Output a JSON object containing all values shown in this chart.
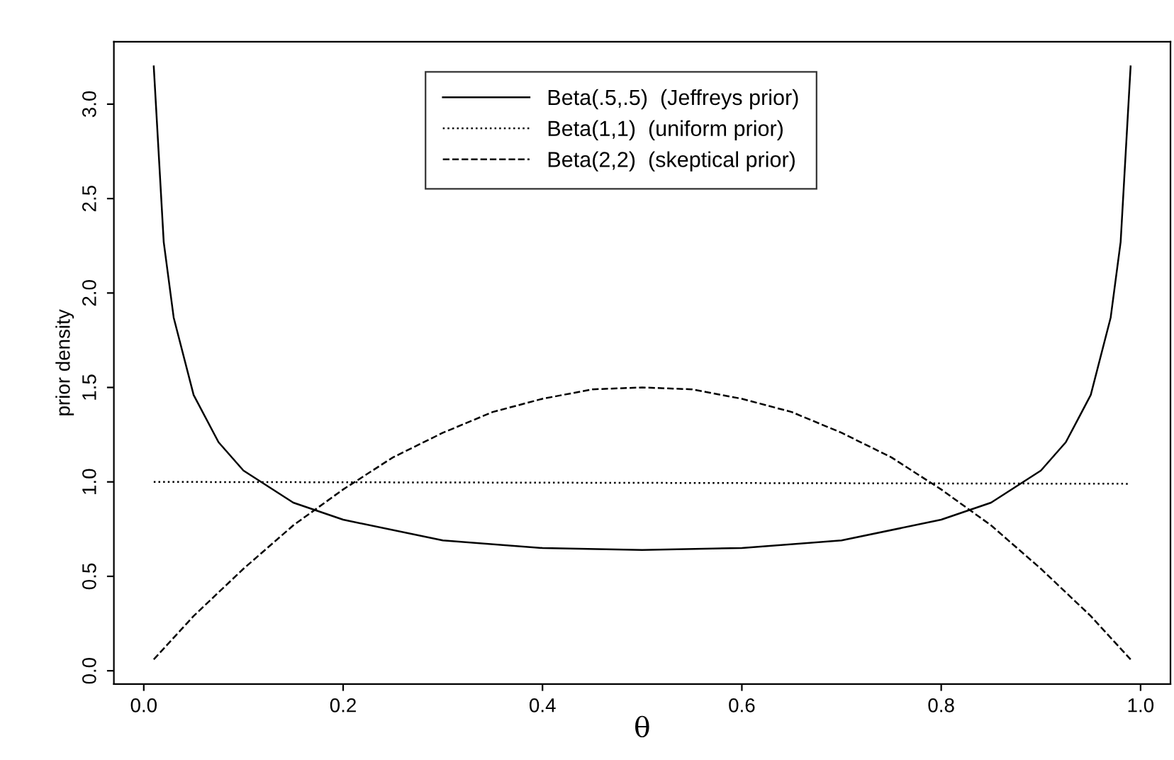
{
  "chart_data": {
    "type": "line",
    "xlabel": "θ",
    "ylabel": "prior density",
    "xlim": [
      -0.03,
      1.03
    ],
    "ylim": [
      -0.07,
      3.33
    ],
    "xticks": [
      {
        "value": 0,
        "label": "0.0"
      },
      0.2,
      0.4,
      0.6,
      0.8,
      {
        "value": 1,
        "label": "1.0"
      }
    ],
    "yticks": [
      {
        "value": 0,
        "label": "0.0"
      },
      0.5,
      {
        "value": 1,
        "label": "1.0"
      },
      1.5,
      {
        "value": 2,
        "label": "2.0"
      },
      2.5,
      {
        "value": 3,
        "label": "3.0"
      }
    ],
    "grid": false,
    "legend": "top",
    "marker": "none",
    "series": [
      {
        "name": "Beta(.5,.5)  (Jeffreys prior)",
        "color": "#000000",
        "line_style": "solid",
        "x": [
          0.01,
          0.02,
          0.03,
          0.05,
          0.075,
          0.1,
          0.15,
          0.2,
          0.3,
          0.4,
          0.5,
          0.6,
          0.7,
          0.8,
          0.85,
          0.9,
          0.925,
          0.95,
          0.97,
          0.98,
          0.99
        ],
        "values": [
          3.2,
          2.27,
          1.87,
          1.46,
          1.21,
          1.06,
          0.89,
          0.8,
          0.69,
          0.65,
          0.64,
          0.65,
          0.69,
          0.8,
          0.89,
          1.06,
          1.21,
          1.46,
          1.87,
          2.27,
          3.2
        ]
      },
      {
        "name": "Beta(1,1)  (uniform prior)",
        "color": "#000000",
        "line_style": "dotted",
        "x": [
          0.01,
          0.99
        ],
        "values": [
          1.0,
          0.99
        ]
      },
      {
        "name": "Beta(2,2)  (skeptical prior)",
        "color": "#000000",
        "line_style": "dashed",
        "x": [
          0.01,
          0.05,
          0.1,
          0.15,
          0.2,
          0.25,
          0.3,
          0.35,
          0.4,
          0.45,
          0.5,
          0.55,
          0.6,
          0.65,
          0.7,
          0.75,
          0.8,
          0.85,
          0.9,
          0.95,
          0.99
        ],
        "values": [
          0.06,
          0.29,
          0.54,
          0.77,
          0.96,
          1.13,
          1.26,
          1.37,
          1.44,
          1.49,
          1.5,
          1.49,
          1.44,
          1.37,
          1.26,
          1.13,
          0.96,
          0.77,
          0.54,
          0.29,
          0.06
        ]
      }
    ]
  }
}
